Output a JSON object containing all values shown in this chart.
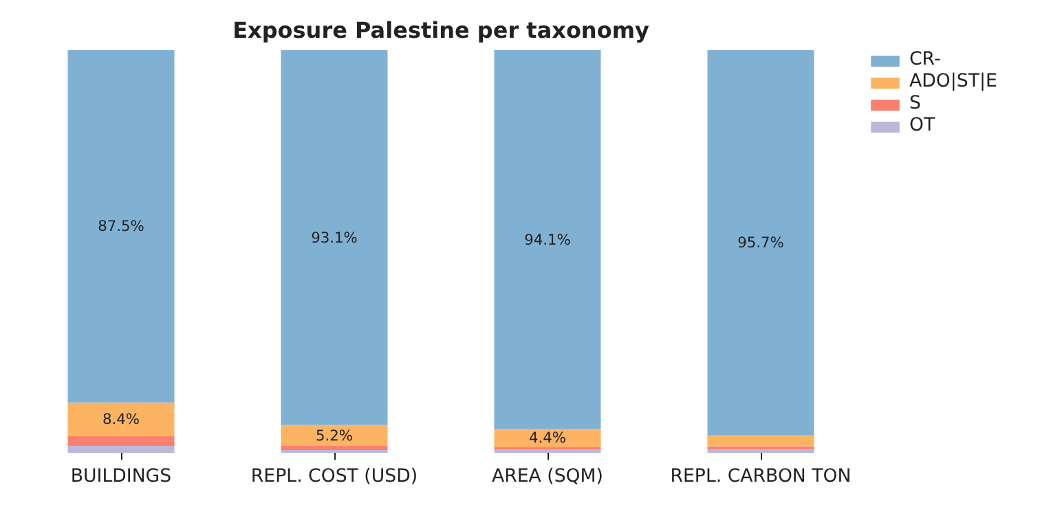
{
  "chart_data": {
    "type": "bar",
    "title": "Exposure Palestine per taxonomy",
    "stacked": true,
    "legend": "top right",
    "grid": false,
    "tick_labels": "x",
    "categories": [
      "BUILDINGS",
      "REPL. COST (USD)",
      "AREA (SQM)",
      "REPL. CARBON TON"
    ],
    "series": [
      {
        "name": "OT",
        "color": "#bcb8da",
        "values": [
          1.7,
          0.7,
          0.8,
          0.9
        ],
        "value_labels": [
          null,
          null,
          null,
          null
        ]
      },
      {
        "name": "S",
        "color": "#fd7f6f",
        "values": [
          2.4,
          1.0,
          0.7,
          0.7
        ],
        "value_labels": [
          null,
          null,
          null,
          null
        ]
      },
      {
        "name": "ADO|ST|E",
        "color": "#fdb462",
        "values": [
          8.4,
          5.2,
          4.4,
          2.7
        ],
        "value_labels": [
          "8.4%",
          "5.2%",
          "4.4%",
          null
        ]
      },
      {
        "name": "CR-",
        "color": "#80b1d3",
        "values": [
          87.5,
          93.1,
          94.1,
          95.7
        ],
        "value_labels": [
          "87.5%",
          "93.1%",
          "94.1%",
          "95.7%"
        ]
      }
    ]
  }
}
